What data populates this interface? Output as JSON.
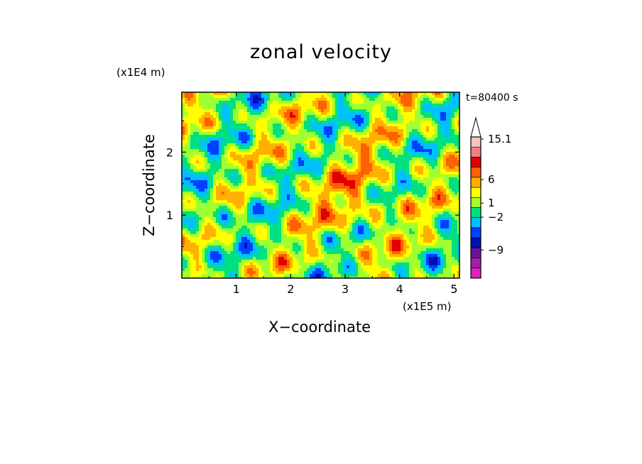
{
  "chart_data": {
    "type": "heatmap",
    "title": "zonal velocity",
    "xlabel": "X−coordinate",
    "ylabel": "Z−coordinate",
    "x_unit_label": "(x1E5 m)",
    "y_unit_label": "(x1E4 m)",
    "time_label": "t=80400 s",
    "xlim": [
      0,
      5.1
    ],
    "ylim": [
      0,
      2.95
    ],
    "x_ticks": [
      1,
      2,
      3,
      4,
      5
    ],
    "x_tick_labels": [
      "1",
      "2",
      "3",
      "4",
      "5"
    ],
    "y_ticks": [
      1,
      2
    ],
    "y_tick_labels": [
      "1",
      "2"
    ],
    "colorbar": {
      "labels": [
        "15.1",
        "6",
        "1",
        "−2",
        "−9"
      ],
      "label_values": [
        15.1,
        6,
        1,
        -2,
        -9
      ],
      "colors": [
        "#e020c0",
        "#a020a8",
        "#7010a0",
        "#0010b0",
        "#0040ff",
        "#00c0ff",
        "#00e080",
        "#a0ff30",
        "#ffff00",
        "#ffb000",
        "#ff6000",
        "#e00000",
        "#f08080",
        "#ffc0c0"
      ],
      "extend_max": true
    }
  }
}
